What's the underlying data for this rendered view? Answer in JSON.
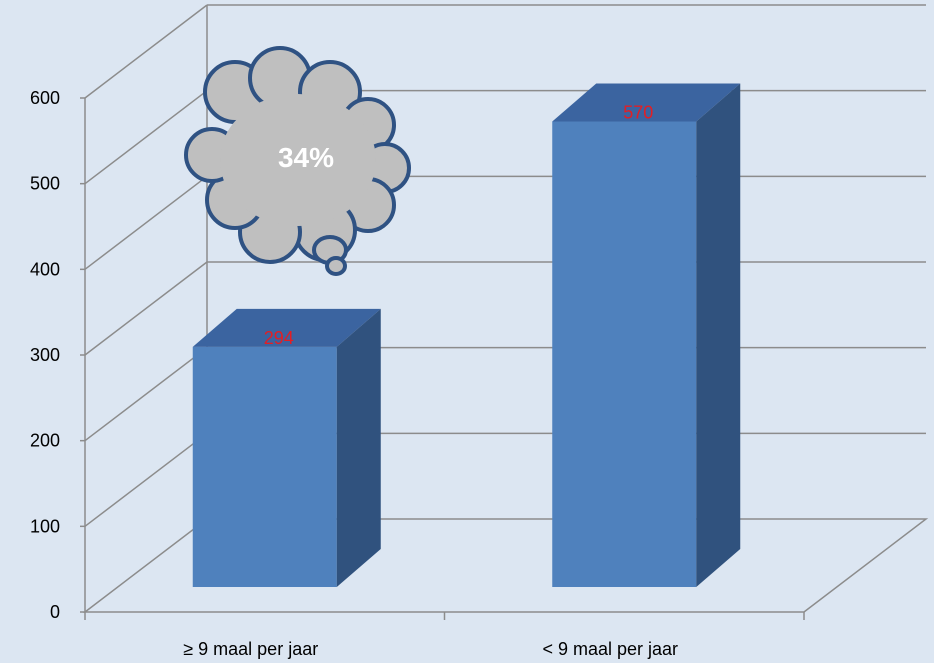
{
  "chart_data": {
    "type": "bar",
    "categories": [
      "≥ 9 maal per jaar",
      "< 9 maal per jaar"
    ],
    "values": [
      294,
      570
    ],
    "data_labels": [
      "294",
      "570"
    ],
    "ylim": [
      0,
      600
    ],
    "yticks": [
      "0",
      "100",
      "200",
      "300",
      "400",
      "500",
      "600"
    ],
    "grid": true,
    "three_d": true,
    "callout": {
      "shape": "thought-bubble",
      "text": "34%"
    },
    "colors": {
      "background": "#dce6f2",
      "bar_front": "#4f81bd",
      "bar_top": "#3b64a0",
      "bar_side": "#30527e",
      "data_label": "#e31e24",
      "grid": "#8c8c8c",
      "bubble_fill": "#bfbfbf",
      "bubble_stroke": "#2f5283"
    }
  }
}
